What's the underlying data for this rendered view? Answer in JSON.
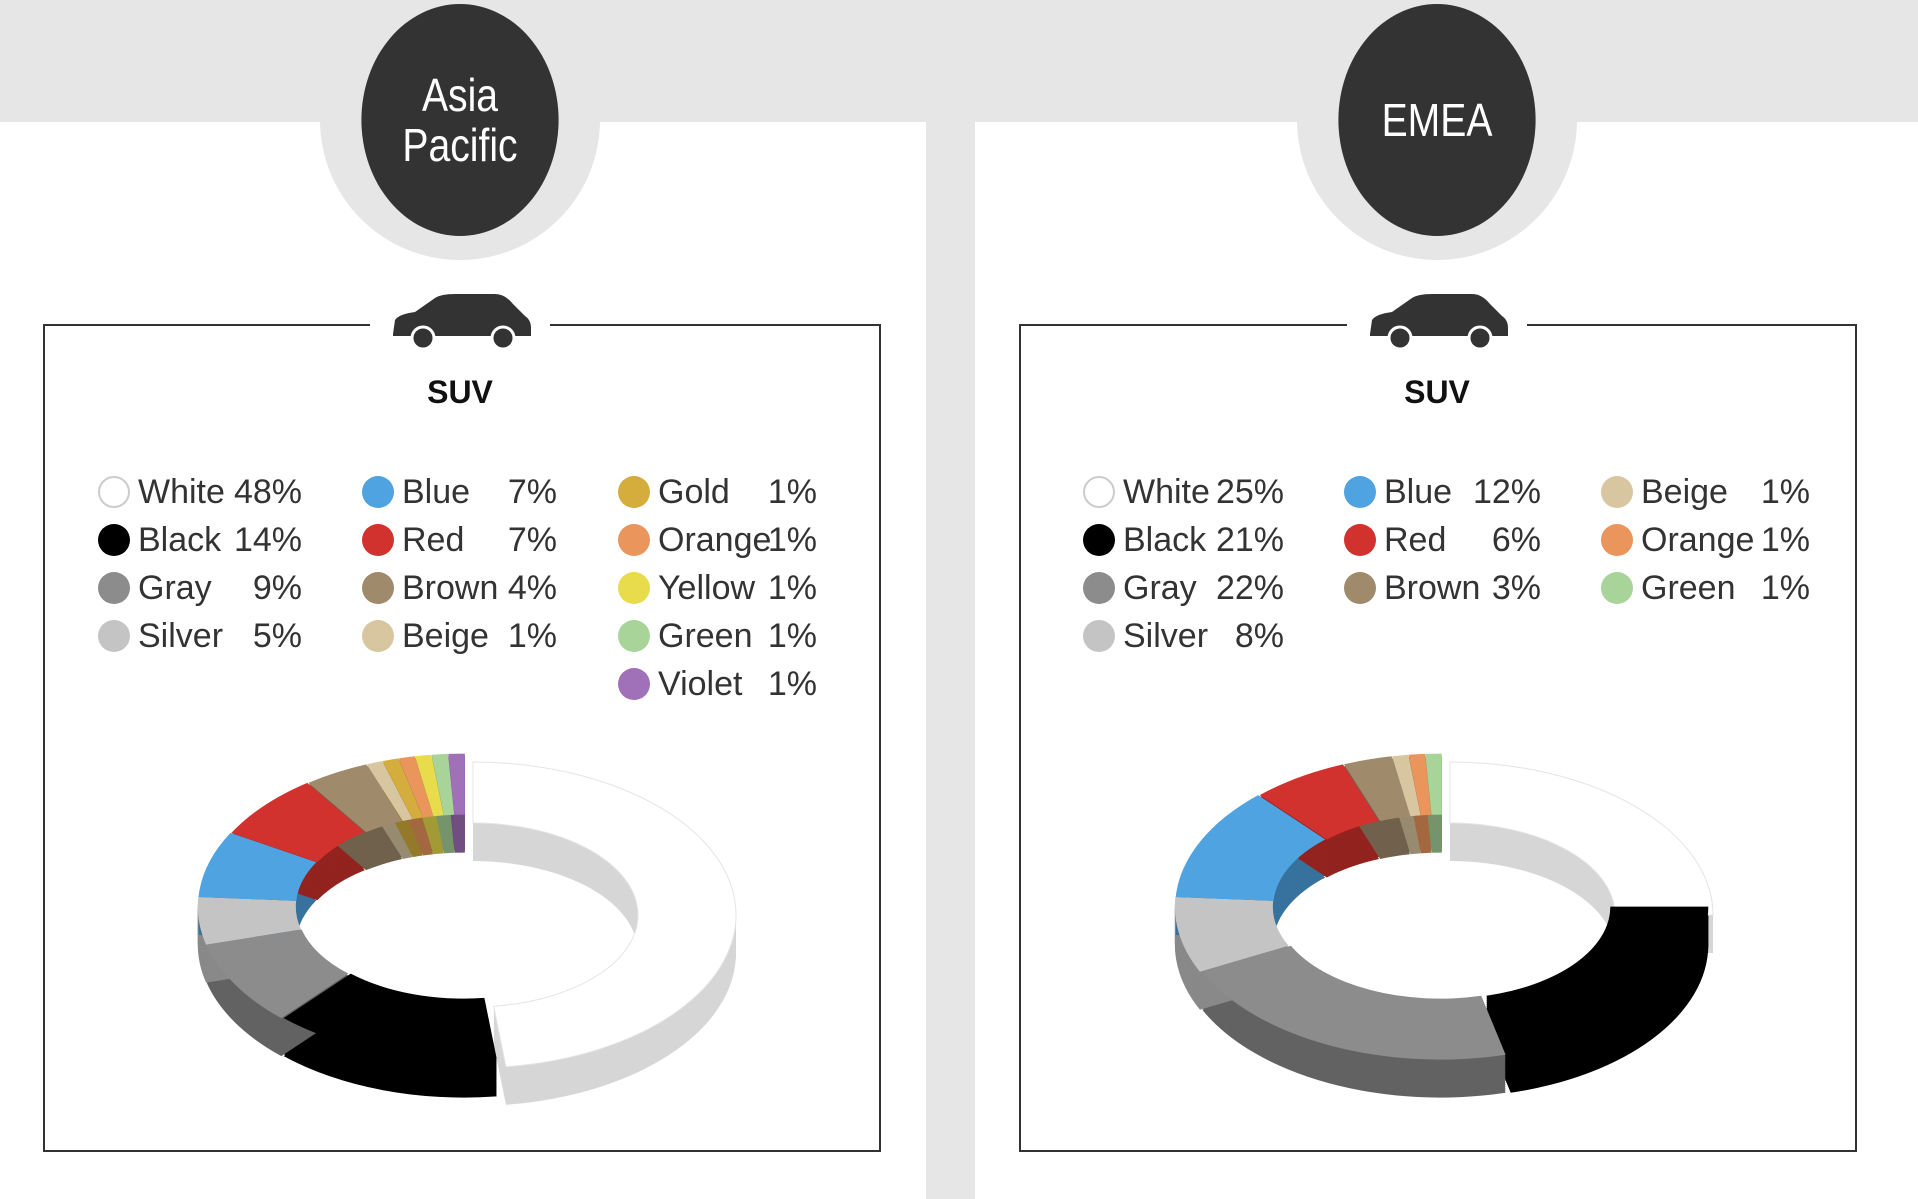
{
  "charts": [
    {
      "region": "Asia Pacific",
      "region_lines": [
        "Asia",
        "Pacific"
      ],
      "segment": "SUV"
    },
    {
      "region": "EMEA",
      "region_lines": [
        "EMEA"
      ],
      "segment": "SUV"
    }
  ],
  "chart_data": [
    {
      "type": "pie",
      "title": "Asia Pacific SUV",
      "categories": [
        "White",
        "Black",
        "Gray",
        "Silver",
        "Blue",
        "Red",
        "Brown",
        "Beige",
        "Gold",
        "Orange",
        "Yellow",
        "Green",
        "Violet"
      ],
      "values": [
        48,
        14,
        9,
        5,
        7,
        7,
        4,
        1,
        1,
        1,
        1,
        1,
        1
      ],
      "labels": [
        "48%",
        "14%",
        "9%",
        "5%",
        "7%",
        "7%",
        "4%",
        "1%",
        "1%",
        "1%",
        "1%",
        "1%",
        "1%"
      ],
      "colors": [
        "#ffffff",
        "#000000",
        "#8c8c8c",
        "#c4c4c4",
        "#4fa3e0",
        "#d2322d",
        "#a08a6c",
        "#d8c6a0",
        "#d4ad3c",
        "#e9955c",
        "#e8dc4c",
        "#a8d49a",
        "#a070b8"
      ]
    },
    {
      "type": "pie",
      "title": "EMEA SUV",
      "categories": [
        "White",
        "Black",
        "Gray",
        "Silver",
        "Blue",
        "Red",
        "Brown",
        "Beige",
        "Orange",
        "Green"
      ],
      "values": [
        25,
        21,
        22,
        8,
        12,
        6,
        3,
        1,
        1,
        1
      ],
      "labels": [
        "25%",
        "21%",
        "22%",
        "8%",
        "12%",
        "6%",
        "3%",
        "1%",
        "1%",
        "1%"
      ],
      "colors": [
        "#ffffff",
        "#000000",
        "#8c8c8c",
        "#c4c4c4",
        "#4fa3e0",
        "#d2322d",
        "#a08a6c",
        "#d8c6a0",
        "#e9955c",
        "#a8d49a"
      ]
    }
  ]
}
